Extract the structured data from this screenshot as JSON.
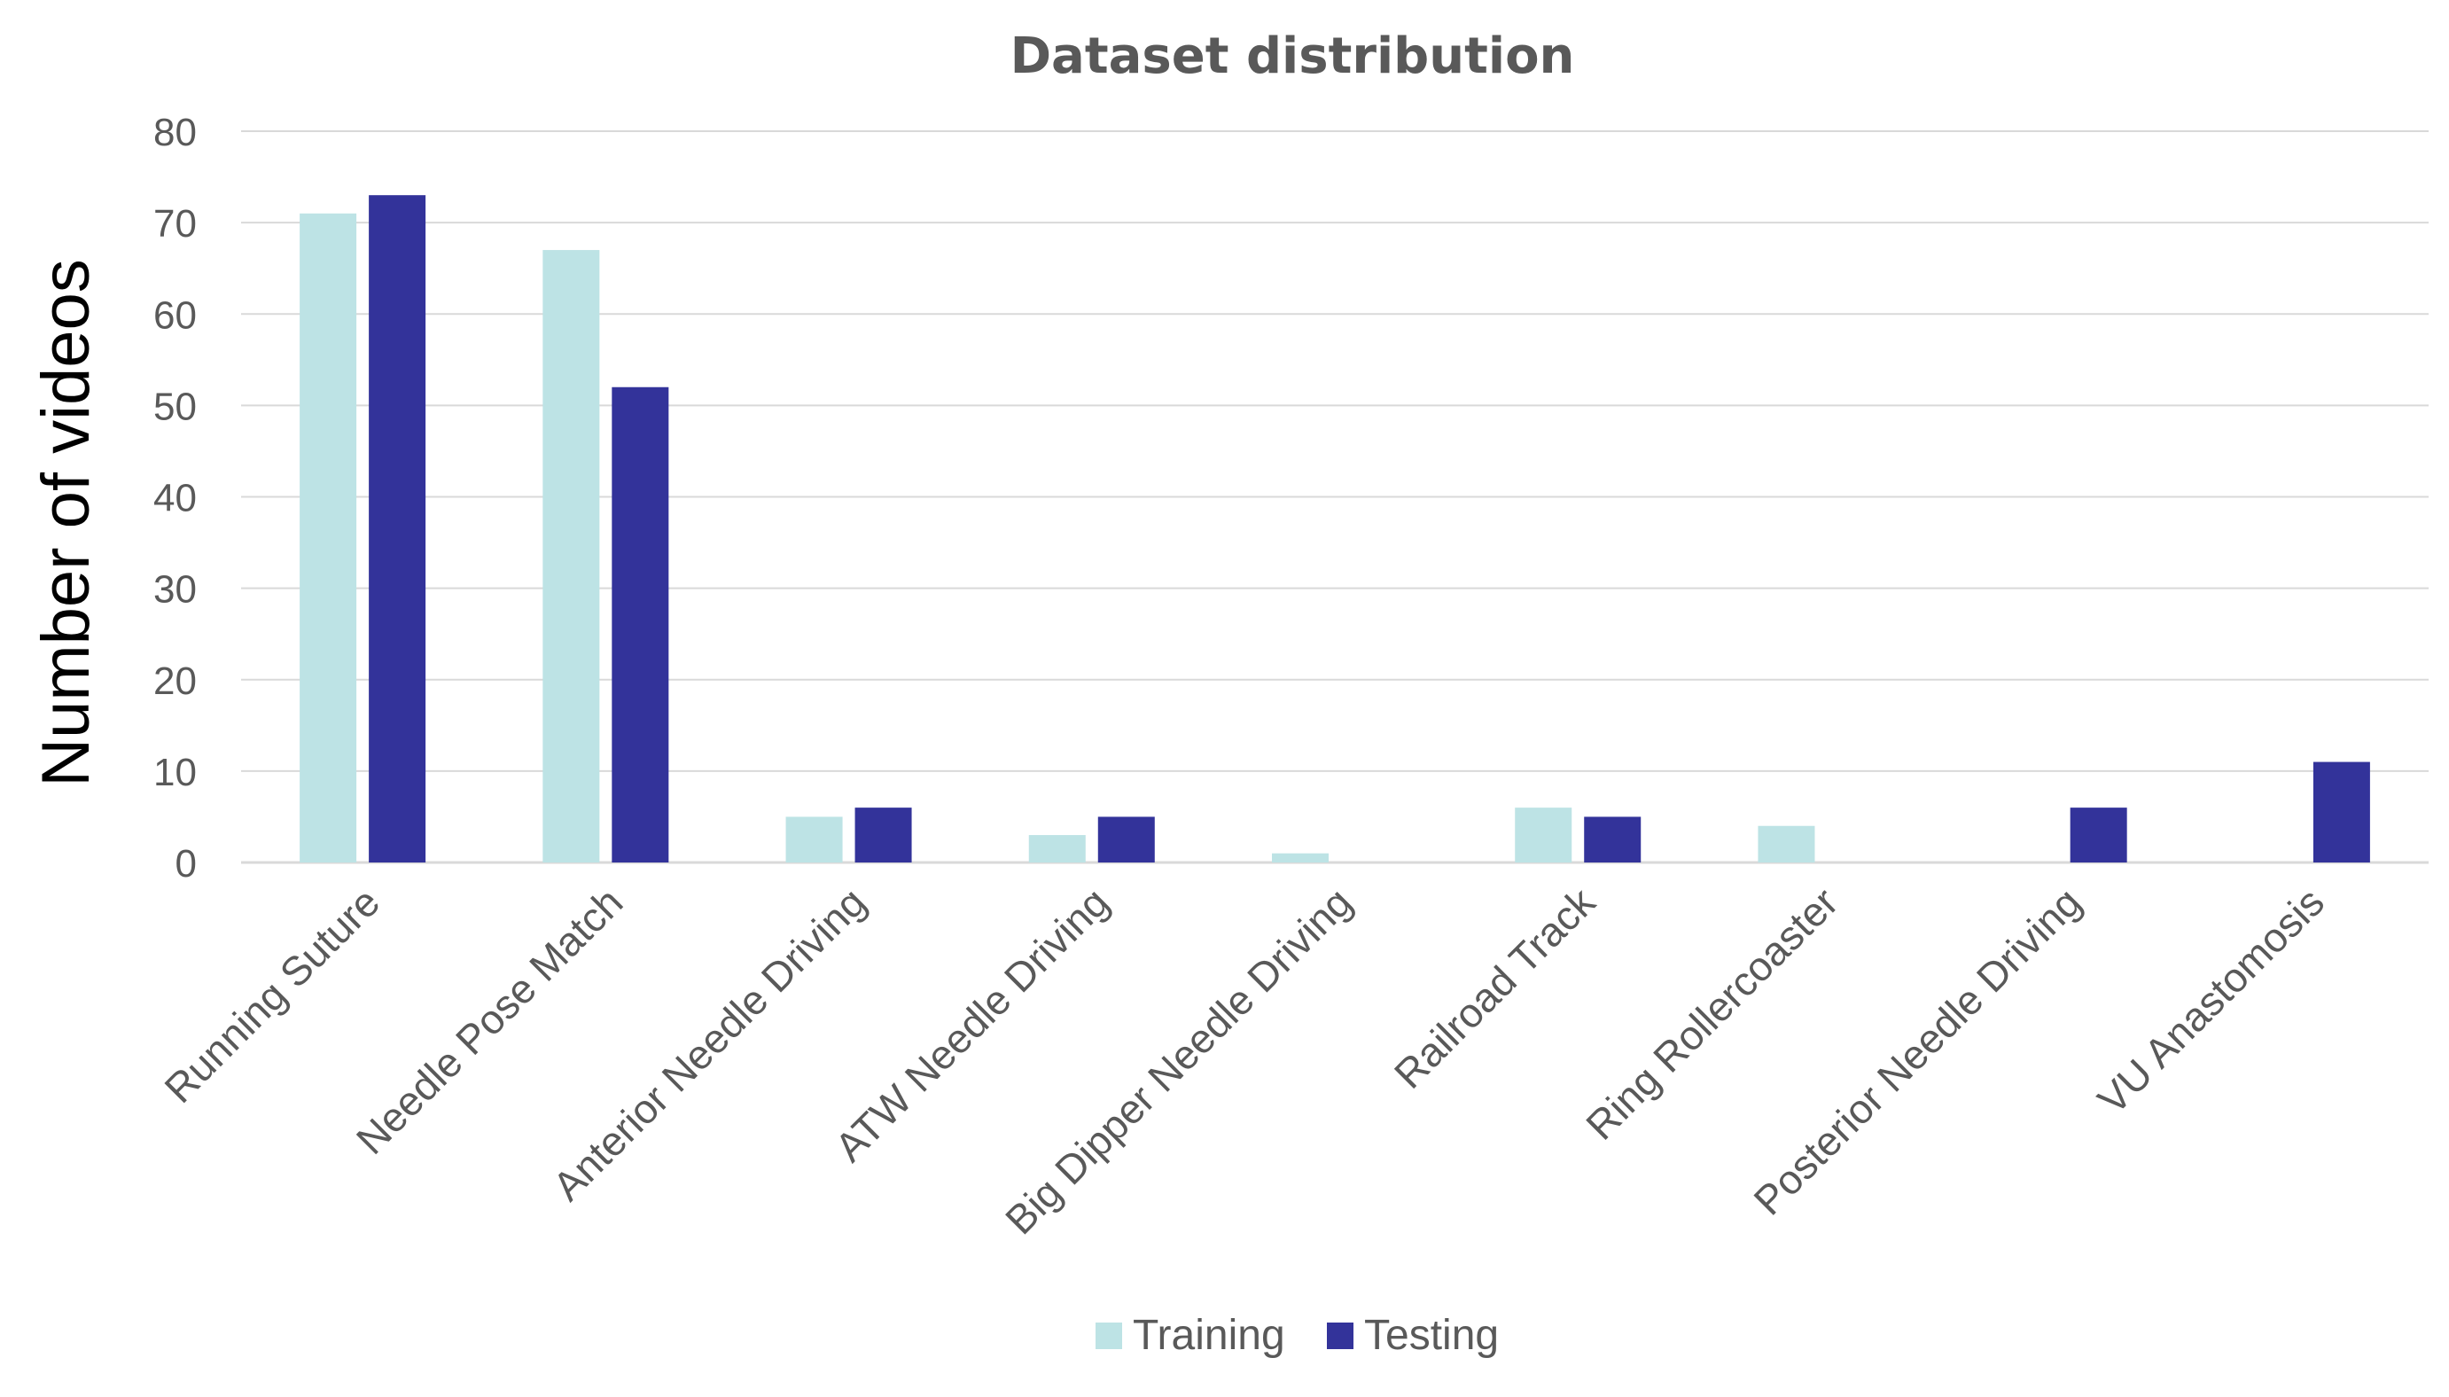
{
  "chart_data": {
    "type": "bar",
    "title": "Dataset distribution",
    "xlabel": "",
    "ylabel": "Number of videos",
    "ylim": [
      0,
      80
    ],
    "yticks": [
      0,
      10,
      20,
      30,
      40,
      50,
      60,
      70,
      80
    ],
    "grid": true,
    "legend_position": "bottom",
    "categories": [
      "Running Suture",
      "Needle Pose Match",
      "Anterior Needle Driving",
      "ATW Needle Driving",
      "Big Dipper Needle Driving",
      "Railroad Track",
      "Ring Rollercoaster",
      "Posterior Needle Driving",
      "VU Anastomosis"
    ],
    "series": [
      {
        "name": "Training",
        "color": "#bde3e5",
        "values": [
          71,
          67,
          5,
          3,
          1,
          6,
          4,
          0,
          0
        ]
      },
      {
        "name": "Testing",
        "color": "#33339a",
        "values": [
          73,
          52,
          6,
          5,
          0,
          5,
          0,
          6,
          11
        ]
      }
    ]
  }
}
